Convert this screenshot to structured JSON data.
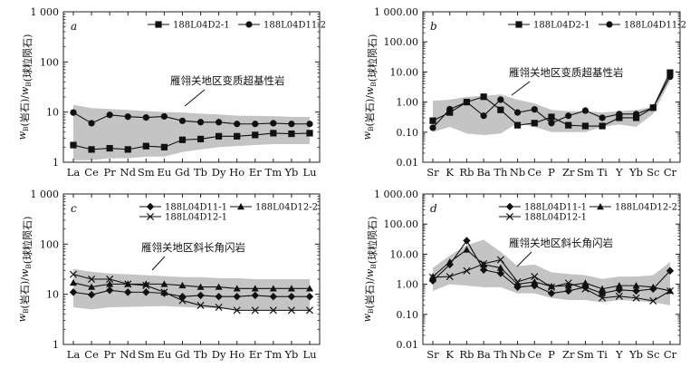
{
  "chart_data": [
    {
      "id": "a",
      "panel_label": "a",
      "type": "line",
      "yscale": "log",
      "ylim": [
        1,
        1000
      ],
      "ylabel": "wB(岩石)/wB(球粒陨石)",
      "ytick_labels": [
        "1",
        "10",
        "100",
        "1 000"
      ],
      "categories": [
        "La",
        "Ce",
        "Pr",
        "Nd",
        "Sm",
        "Eu",
        "Gd",
        "Tb",
        "Dy",
        "Ho",
        "Er",
        "Tm",
        "Yb",
        "Lu"
      ],
      "annotation": "雁翎关地区变质超基性岩",
      "legend_position": "top-right",
      "band": {
        "upper": [
          14,
          12,
          11.5,
          11,
          10.5,
          10,
          9.8,
          9.3,
          9.0,
          8.5,
          8.4,
          8.3,
          8.0,
          8.0
        ],
        "lower": [
          1.1,
          1.1,
          1.2,
          1.2,
          1.3,
          1.3,
          1.6,
          1.8,
          2.0,
          2.1,
          2.2,
          2.3,
          2.3,
          2.3
        ]
      },
      "series": [
        {
          "name": "188L04D2-1",
          "marker": "square",
          "values": [
            2.2,
            1.8,
            1.9,
            1.8,
            2.1,
            2.0,
            2.8,
            2.9,
            3.3,
            3.3,
            3.5,
            3.8,
            3.7,
            3.8
          ]
        },
        {
          "name": "188L04D11-2",
          "marker": "circle",
          "values": [
            9.8,
            6.0,
            8.8,
            8.1,
            7.8,
            8.2,
            6.7,
            6.3,
            6.3,
            5.8,
            5.8,
            6.0,
            5.8,
            5.8
          ]
        }
      ]
    },
    {
      "id": "b",
      "panel_label": "b",
      "type": "line",
      "yscale": "log",
      "ylim": [
        0.01,
        1000
      ],
      "ylabel": "wB(岩石)/wB(球粒陨石)",
      "ytick_labels": [
        "0.01",
        "0.10",
        "1.00",
        "10.00",
        "100.00",
        "1 000.00"
      ],
      "categories": [
        "Sr",
        "K",
        "Rb",
        "Ba",
        "Th",
        "Nb",
        "Ce",
        "P",
        "Zr",
        "Sm",
        "Ti",
        "Y",
        "Yb",
        "Sc",
        "Cr"
      ],
      "annotation": "雁翎关地区变质超基性岩",
      "legend_position": "top-right",
      "band": {
        "upper": [
          1.1,
          1.2,
          1.5,
          1.6,
          1.8,
          1.2,
          0.9,
          0.55,
          0.5,
          0.5,
          0.45,
          0.5,
          0.55,
          0.7,
          13
        ],
        "lower": [
          0.1,
          0.15,
          0.09,
          0.08,
          0.09,
          0.2,
          0.15,
          0.1,
          0.1,
          0.1,
          0.15,
          0.18,
          0.15,
          0.4,
          5
        ]
      },
      "series": [
        {
          "name": "188L04D2-1",
          "marker": "square",
          "values": [
            0.24,
            0.45,
            1.0,
            1.5,
            0.55,
            0.17,
            0.2,
            0.32,
            0.17,
            0.16,
            0.16,
            0.3,
            0.3,
            0.65,
            9.5
          ]
        },
        {
          "name": "188L04D11-2",
          "marker": "circle",
          "values": [
            0.14,
            0.58,
            1.0,
            0.35,
            1.2,
            0.45,
            0.57,
            0.2,
            0.35,
            0.52,
            0.3,
            0.4,
            0.4,
            0.65,
            7.0
          ]
        }
      ]
    },
    {
      "id": "c",
      "panel_label": "c",
      "type": "line",
      "yscale": "log",
      "ylim": [
        1,
        1000
      ],
      "ylabel": "wB(岩石)/wB(球粒陨石)",
      "ytick_labels": [
        "1",
        "10",
        "100",
        "1 000"
      ],
      "categories": [
        "La",
        "Ce",
        "Pr",
        "Nd",
        "Sm",
        "Eu",
        "Gd",
        "Tb",
        "Dy",
        "Ho",
        "Er",
        "Tm",
        "Yb",
        "Lu"
      ],
      "annotation": "雁翎关地区斜长角闪岩",
      "legend_position": "top-right",
      "band": {
        "upper": [
          32,
          28,
          26,
          25,
          24,
          23,
          22,
          22,
          21,
          21,
          20,
          20,
          20,
          20
        ],
        "lower": [
          5.5,
          5.0,
          5.5,
          5.6,
          5.7,
          5.8,
          5.6,
          5.4,
          5.2,
          5.0,
          5.0,
          5.0,
          5.0,
          5.0
        ]
      },
      "series": [
        {
          "name": "188L04D11-1",
          "marker": "diamond",
          "values": [
            11,
            9.8,
            12,
            11,
            11,
            10.5,
            9,
            9.5,
            9,
            9,
            9.5,
            9,
            9,
            9
          ]
        },
        {
          "name": "188L04D12-2",
          "marker": "triangle",
          "values": [
            17,
            14,
            16,
            16,
            16,
            16,
            15,
            14,
            14,
            13,
            13,
            13,
            13,
            13
          ]
        },
        {
          "name": "188L04D12-1",
          "marker": "x",
          "values": [
            25,
            20,
            20,
            16,
            15,
            11,
            7.5,
            6,
            5.5,
            4.8,
            4.8,
            4.8,
            4.8,
            4.8
          ]
        }
      ]
    },
    {
      "id": "d",
      "panel_label": "d",
      "type": "line",
      "yscale": "log",
      "ylim": [
        0.01,
        1000
      ],
      "ylabel": "wB(岩石)/wB(球粒陨石)",
      "ytick_labels": [
        "0.01",
        "0.10",
        "1.00",
        "10.00",
        "100.00",
        "1 000.00"
      ],
      "categories": [
        "Sr",
        "K",
        "Rb",
        "Ba",
        "Th",
        "Nb",
        "Ce",
        "P",
        "Zr",
        "Sm",
        "Ti",
        "Y",
        "Yb",
        "Sc",
        "Cr"
      ],
      "annotation": "雁翎关地区斜长角闪岩",
      "legend_position": "top-right",
      "band": {
        "upper": [
          3.5,
          9,
          20,
          30,
          12,
          4,
          4.5,
          2.5,
          2.2,
          2,
          1.5,
          1.8,
          1.8,
          2.0,
          5.5
        ],
        "lower": [
          0.6,
          1.0,
          0.9,
          0.8,
          0.8,
          0.5,
          0.5,
          0.35,
          0.3,
          0.3,
          0.25,
          0.3,
          0.28,
          0.25,
          0.2
        ]
      },
      "series": [
        {
          "name": "188L04D11-1",
          "marker": "diamond",
          "values": [
            1.3,
            4.5,
            28,
            3.0,
            2.3,
            0.8,
            0.9,
            0.5,
            0.6,
            0.8,
            0.5,
            0.65,
            0.6,
            0.7,
            2.8
          ]
        },
        {
          "name": "188L04D12-2",
          "marker": "triangle",
          "values": [
            1.8,
            5.5,
            14,
            4.5,
            3.5,
            1.0,
            1.2,
            0.85,
            0.9,
            1.1,
            0.7,
            0.9,
            0.9,
            0.8,
            0.6
          ]
        },
        {
          "name": "188L04D12-1",
          "marker": "x",
          "values": [
            1.7,
            1.8,
            2.8,
            4.8,
            6.5,
            1.2,
            1.8,
            0.8,
            1.1,
            0.7,
            0.35,
            0.4,
            0.35,
            0.28,
            0.6
          ]
        }
      ]
    }
  ]
}
